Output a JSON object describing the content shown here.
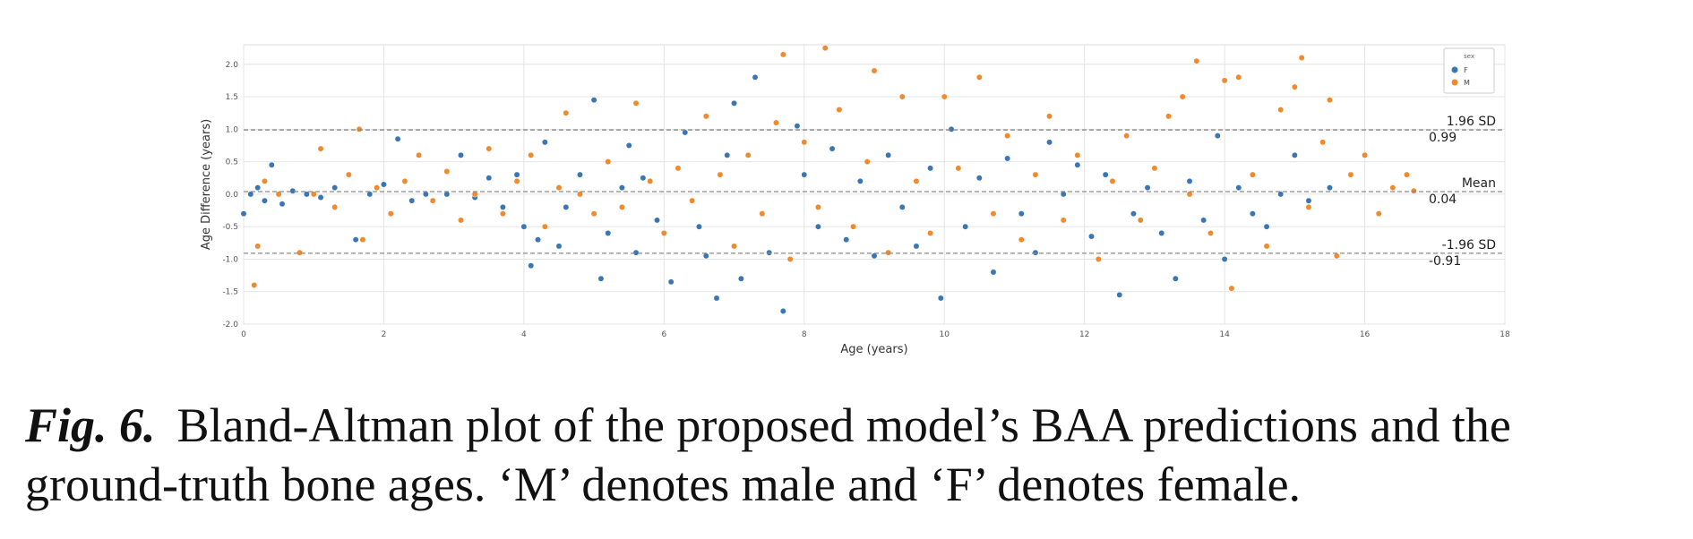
{
  "chart_data": {
    "type": "scatter",
    "title": "",
    "xlabel": "Age (years)",
    "ylabel": "Age Difference (years)",
    "xlim": [
      0,
      18
    ],
    "ylim": [
      -2.0,
      2.3
    ],
    "xticks": [
      "0",
      "2",
      "4",
      "6",
      "8",
      "10",
      "12",
      "14",
      "16",
      "18"
    ],
    "yticks": [
      "-2.0",
      "-1.5",
      "-1.0",
      "-0.5",
      "0.0",
      "0.5",
      "1.0",
      "1.5",
      "2.0"
    ],
    "grid": true,
    "legend": {
      "title": "sex",
      "placement": "top-right",
      "entries": [
        "F",
        "M"
      ]
    },
    "colors": {
      "F": "#3a76b4",
      "M": "#f08a2c"
    },
    "reference_lines": [
      {
        "label": "1.96 SD",
        "value_text": "0.99",
        "y": 0.99
      },
      {
        "label": "Mean",
        "value_text": "0.04",
        "y": 0.04
      },
      {
        "label": "-1.96 SD",
        "value_text": "-0.91",
        "y": -0.91
      }
    ],
    "series": [
      {
        "name": "F",
        "points": [
          [
            0.0,
            -0.3
          ],
          [
            0.1,
            0.0
          ],
          [
            0.2,
            0.1
          ],
          [
            0.3,
            -0.1
          ],
          [
            0.4,
            0.45
          ],
          [
            0.5,
            0.0
          ],
          [
            0.55,
            -0.15
          ],
          [
            0.7,
            0.05
          ],
          [
            0.9,
            0.0
          ],
          [
            1.1,
            -0.05
          ],
          [
            1.3,
            0.1
          ],
          [
            1.6,
            -0.7
          ],
          [
            1.8,
            0.0
          ],
          [
            2.0,
            0.15
          ],
          [
            2.2,
            0.85
          ],
          [
            2.4,
            -0.1
          ],
          [
            2.6,
            0.0
          ],
          [
            2.9,
            0.0
          ],
          [
            3.1,
            0.6
          ],
          [
            3.3,
            -0.05
          ],
          [
            3.5,
            0.25
          ],
          [
            3.7,
            -0.2
          ],
          [
            3.9,
            0.3
          ],
          [
            4.0,
            -0.5
          ],
          [
            4.1,
            -1.1
          ],
          [
            4.2,
            -0.7
          ],
          [
            4.3,
            0.8
          ],
          [
            4.5,
            -0.8
          ],
          [
            4.6,
            -0.2
          ],
          [
            4.8,
            0.3
          ],
          [
            5.0,
            1.45
          ],
          [
            5.1,
            -1.3
          ],
          [
            5.2,
            -0.6
          ],
          [
            5.4,
            0.1
          ],
          [
            5.5,
            0.75
          ],
          [
            5.6,
            -0.9
          ],
          [
            5.7,
            0.25
          ],
          [
            5.9,
            -0.4
          ],
          [
            6.1,
            -1.35
          ],
          [
            6.3,
            0.95
          ],
          [
            6.5,
            -0.5
          ],
          [
            6.6,
            -0.95
          ],
          [
            6.75,
            -1.6
          ],
          [
            6.9,
            0.6
          ],
          [
            7.0,
            1.4
          ],
          [
            7.1,
            -1.3
          ],
          [
            7.3,
            1.8
          ],
          [
            7.4,
            -0.3
          ],
          [
            7.5,
            -0.9
          ],
          [
            7.7,
            -1.8
          ],
          [
            7.9,
            1.05
          ],
          [
            8.0,
            0.3
          ],
          [
            8.2,
            -0.5
          ],
          [
            8.4,
            0.7
          ],
          [
            8.6,
            -0.7
          ],
          [
            8.8,
            0.2
          ],
          [
            9.0,
            -0.95
          ],
          [
            9.2,
            0.6
          ],
          [
            9.4,
            -0.2
          ],
          [
            9.6,
            -0.8
          ],
          [
            9.8,
            0.4
          ],
          [
            9.95,
            -1.6
          ],
          [
            10.1,
            1.0
          ],
          [
            10.3,
            -0.5
          ],
          [
            10.5,
            0.25
          ],
          [
            10.7,
            -1.2
          ],
          [
            10.9,
            0.55
          ],
          [
            11.1,
            -0.3
          ],
          [
            11.3,
            -0.9
          ],
          [
            11.5,
            0.8
          ],
          [
            11.7,
            0.0
          ],
          [
            11.9,
            0.45
          ],
          [
            12.1,
            -0.65
          ],
          [
            12.3,
            0.3
          ],
          [
            12.5,
            -1.55
          ],
          [
            12.7,
            -0.3
          ],
          [
            12.9,
            0.1
          ],
          [
            13.1,
            -0.6
          ],
          [
            13.3,
            -1.3
          ],
          [
            13.5,
            0.2
          ],
          [
            13.7,
            -0.4
          ],
          [
            13.9,
            0.9
          ],
          [
            14.0,
            -1.0
          ],
          [
            14.2,
            0.1
          ],
          [
            14.4,
            -0.3
          ],
          [
            14.6,
            -0.5
          ],
          [
            14.8,
            0.0
          ],
          [
            15.0,
            0.6
          ],
          [
            15.2,
            -0.1
          ],
          [
            15.5,
            0.1
          ]
        ]
      },
      {
        "name": "M",
        "points": [
          [
            0.15,
            -1.4
          ],
          [
            0.2,
            -0.8
          ],
          [
            0.3,
            0.2
          ],
          [
            0.5,
            0.0
          ],
          [
            0.8,
            -0.9
          ],
          [
            1.0,
            0.0
          ],
          [
            1.1,
            0.7
          ],
          [
            1.3,
            -0.2
          ],
          [
            1.5,
            0.3
          ],
          [
            1.65,
            1.0
          ],
          [
            1.7,
            -0.7
          ],
          [
            1.9,
            0.1
          ],
          [
            2.1,
            -0.3
          ],
          [
            2.3,
            0.2
          ],
          [
            2.5,
            0.6
          ],
          [
            2.7,
            -0.1
          ],
          [
            2.9,
            0.35
          ],
          [
            3.1,
            -0.4
          ],
          [
            3.3,
            0.0
          ],
          [
            3.5,
            0.7
          ],
          [
            3.7,
            -0.3
          ],
          [
            3.9,
            0.2
          ],
          [
            4.1,
            0.6
          ],
          [
            4.3,
            -0.5
          ],
          [
            4.5,
            0.1
          ],
          [
            4.6,
            1.25
          ],
          [
            4.8,
            0.0
          ],
          [
            5.0,
            -0.3
          ],
          [
            5.2,
            0.5
          ],
          [
            5.4,
            -0.2
          ],
          [
            5.6,
            1.4
          ],
          [
            5.8,
            0.2
          ],
          [
            6.0,
            -0.6
          ],
          [
            6.2,
            0.4
          ],
          [
            6.4,
            -0.1
          ],
          [
            6.6,
            1.2
          ],
          [
            6.8,
            0.3
          ],
          [
            7.0,
            -0.8
          ],
          [
            7.2,
            0.6
          ],
          [
            7.4,
            -0.3
          ],
          [
            7.6,
            1.1
          ],
          [
            7.7,
            2.15
          ],
          [
            7.8,
            -1.0
          ],
          [
            8.0,
            0.8
          ],
          [
            8.2,
            -0.2
          ],
          [
            8.3,
            2.25
          ],
          [
            8.5,
            1.3
          ],
          [
            8.7,
            -0.5
          ],
          [
            8.9,
            0.5
          ],
          [
            9.0,
            1.9
          ],
          [
            9.2,
            -0.9
          ],
          [
            9.4,
            1.5
          ],
          [
            9.6,
            0.2
          ],
          [
            9.8,
            -0.6
          ],
          [
            10.0,
            1.5
          ],
          [
            10.2,
            0.4
          ],
          [
            10.5,
            1.8
          ],
          [
            10.7,
            -0.3
          ],
          [
            10.9,
            0.9
          ],
          [
            11.1,
            -0.7
          ],
          [
            11.3,
            0.3
          ],
          [
            11.5,
            1.2
          ],
          [
            11.7,
            -0.4
          ],
          [
            11.9,
            0.6
          ],
          [
            12.2,
            -1.0
          ],
          [
            12.4,
            0.2
          ],
          [
            12.6,
            0.9
          ],
          [
            12.8,
            -0.4
          ],
          [
            13.0,
            0.4
          ],
          [
            13.2,
            1.2
          ],
          [
            13.4,
            1.5
          ],
          [
            13.5,
            0.0
          ],
          [
            13.6,
            2.05
          ],
          [
            13.8,
            -0.6
          ],
          [
            14.0,
            1.75
          ],
          [
            14.1,
            -1.45
          ],
          [
            14.2,
            1.8
          ],
          [
            14.4,
            0.3
          ],
          [
            14.6,
            -0.8
          ],
          [
            14.8,
            1.3
          ],
          [
            15.0,
            1.65
          ],
          [
            15.1,
            2.1
          ],
          [
            15.2,
            -0.2
          ],
          [
            15.4,
            0.8
          ],
          [
            15.5,
            1.45
          ],
          [
            15.6,
            -0.95
          ],
          [
            15.8,
            0.3
          ],
          [
            16.0,
            0.6
          ],
          [
            16.2,
            -0.3
          ],
          [
            16.4,
            0.1
          ],
          [
            16.6,
            0.3
          ],
          [
            16.7,
            0.05
          ]
        ]
      }
    ]
  },
  "caption": {
    "label": "Fig. 6.",
    "text": "Bland-Altman plot of the proposed model’s BAA predictions and the ground-truth bone ages. ‘M’ denotes male and ‘F’ denotes female."
  }
}
